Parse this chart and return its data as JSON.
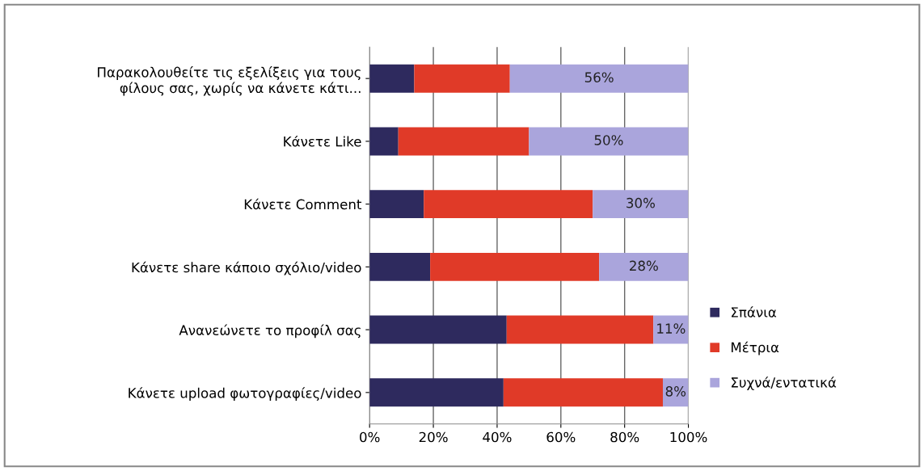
{
  "chart_data": {
    "type": "bar",
    "orientation": "horizontal",
    "stacked": true,
    "categories": [
      "Παρακολουθείτε τις εξελίξεις για τους\nφίλους σας, χωρίς να κάνετε κάτι...",
      "Κάνετε Like",
      "Κάνετε Comment",
      "Κάνετε share κάποιο σχόλιο/video",
      "Ανανεώνετε το προφίλ σας",
      "Κάνετε upload φωτογραφίες/video"
    ],
    "series": [
      {
        "name": "Σπάνια",
        "color": "#2e2a5e",
        "values": [
          14,
          9,
          17,
          19,
          43,
          42
        ]
      },
      {
        "name": "Μέτρια",
        "color": "#e03a28",
        "values": [
          30,
          41,
          53,
          53,
          46,
          50
        ]
      },
      {
        "name": "Συχνά/εντατικά",
        "color": "#aaa5dc",
        "values": [
          56,
          50,
          30,
          28,
          11,
          8
        ],
        "value_labels": [
          "56%",
          "50%",
          "30%",
          "28%",
          "11%",
          "8%"
        ]
      }
    ],
    "xlim": [
      0,
      100
    ],
    "xticks": [
      {
        "value": 0,
        "label": "0%"
      },
      {
        "value": 20,
        "label": "20%"
      },
      {
        "value": 40,
        "label": "40%"
      },
      {
        "value": 60,
        "label": "60%"
      },
      {
        "value": 80,
        "label": "80%"
      },
      {
        "value": 100,
        "label": "100%"
      }
    ],
    "grid": "x",
    "legend": "right"
  }
}
